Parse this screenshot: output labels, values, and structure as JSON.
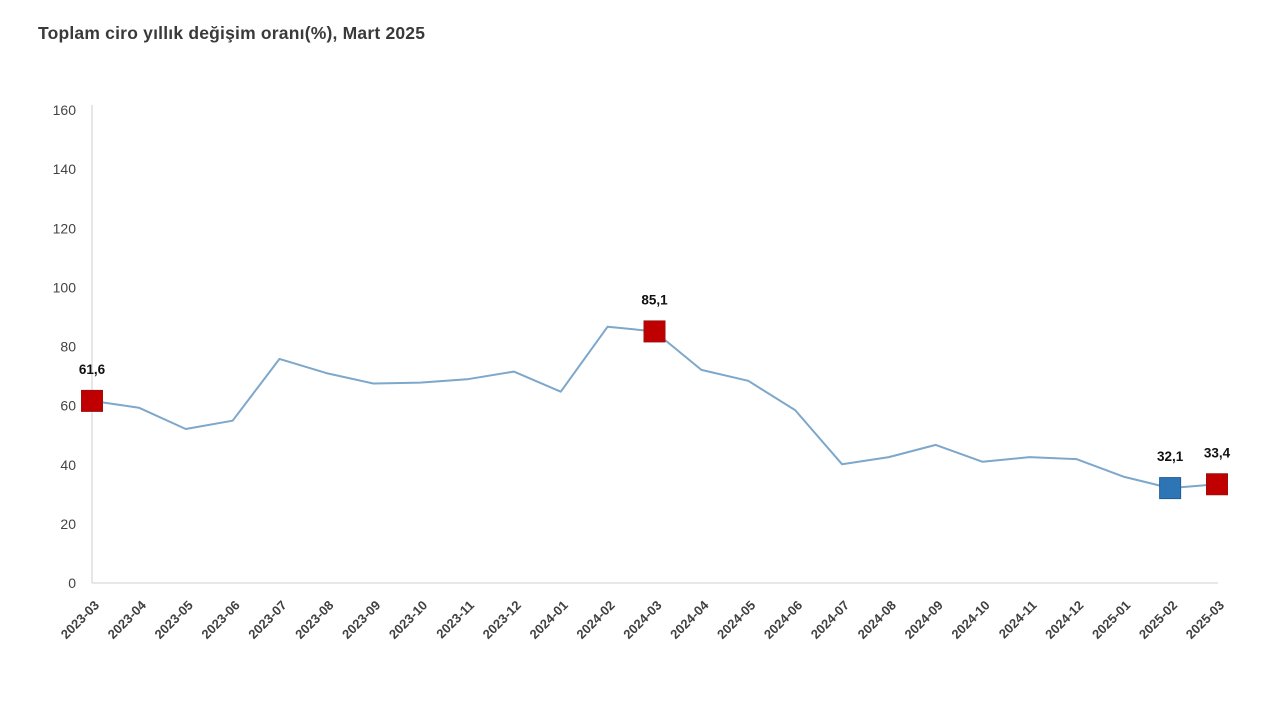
{
  "page": {
    "background_color": "#ffffff"
  },
  "chart_data": {
    "type": "line",
    "title": "Toplam ciro yıllık değişim oranı(%), Mart 2025",
    "categories": [
      "2023-03",
      "2023-04",
      "2023-05",
      "2023-06",
      "2023-07",
      "2023-08",
      "2023-09",
      "2023-10",
      "2023-11",
      "2023-12",
      "2024-01",
      "2024-02",
      "2024-03",
      "2024-04",
      "2024-05",
      "2024-06",
      "2024-07",
      "2024-08",
      "2024-09",
      "2024-10",
      "2024-11",
      "2024-12",
      "2025-01",
      "2025-02",
      "2025-03"
    ],
    "series": [
      {
        "name": "Toplam ciro yıllık değişim oranı (%)",
        "values": [
          61.6,
          59.3,
          52.1,
          54.9,
          75.8,
          71.0,
          67.5,
          67.8,
          68.9,
          71.5,
          64.7,
          86.7,
          85.1,
          72.1,
          68.4,
          58.5,
          40.2,
          42.6,
          46.7,
          41.0,
          42.6,
          41.9,
          36.0,
          32.1,
          33.4
        ]
      }
    ],
    "y_ticks": [
      "0",
      "20",
      "40",
      "60",
      "80",
      "100",
      "120",
      "140",
      "160"
    ],
    "ylim": [
      0,
      160
    ],
    "ytick_step": 20,
    "grid": false,
    "legend_position": "none",
    "line_color": "#7da7cb",
    "axis_color": "#d9d9d9",
    "annotated_points": [
      {
        "category": "2023-03",
        "value": 61.6,
        "label": "61,6",
        "marker_color": "#c00000",
        "marker_border": "#9c0f0f"
      },
      {
        "category": "2024-03",
        "value": 85.1,
        "label": "85,1",
        "marker_color": "#c00000",
        "marker_border": "#9c0f0f"
      },
      {
        "category": "2025-02",
        "value": 32.1,
        "label": "32,1",
        "marker_color": "#2e75b6",
        "marker_border": "#1f5c96"
      },
      {
        "category": "2025-03",
        "value": 33.4,
        "label": "33,4",
        "marker_color": "#c00000",
        "marker_border": "#9c0f0f"
      }
    ]
  }
}
